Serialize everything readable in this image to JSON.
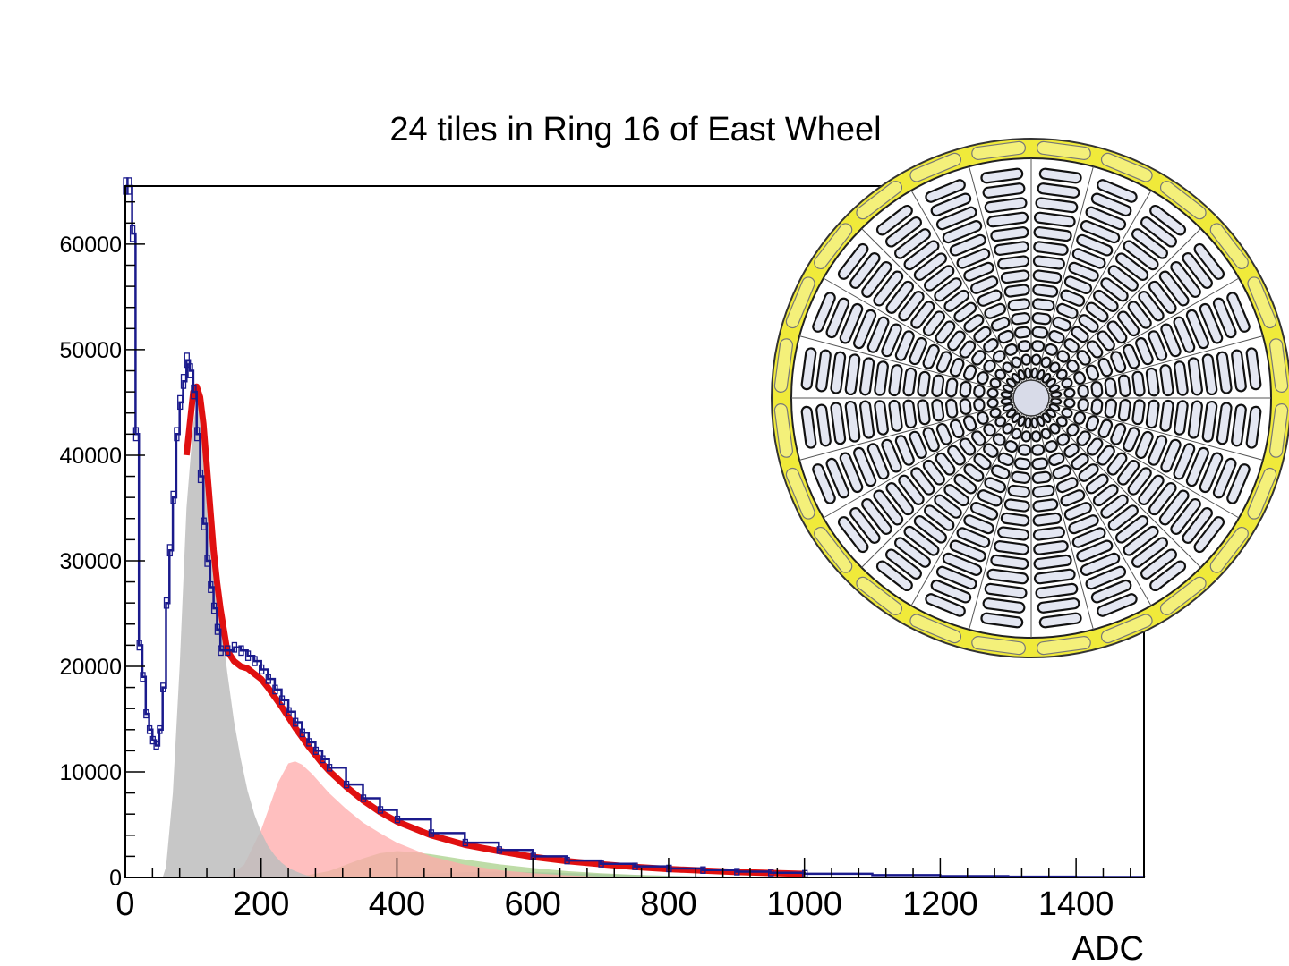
{
  "chart_data": {
    "type": "histogram",
    "title": "24 tiles in Ring 16 of East Wheel",
    "xlabel": "ADC",
    "ylabel": "",
    "xlim": [
      0,
      1500
    ],
    "ylim": [
      0,
      65500
    ],
    "x_ticks": [
      "0",
      "200",
      "400",
      "600",
      "800",
      "1000",
      "1200",
      "1400"
    ],
    "y_ticks": [
      "0",
      "10000",
      "20000",
      "30000",
      "40000",
      "50000",
      "60000"
    ],
    "grid": false,
    "colors": {
      "data": "#1a1a8c",
      "fit": "#e01010",
      "mip1": "#bdbdbd",
      "mip2": "#ffaaaa",
      "mip3": "#a8d08a",
      "mip4": "#9ab0d0",
      "inset_ring": "#f0ea3a"
    },
    "series": [
      {
        "role": "data",
        "x": [
          0,
          5,
          10,
          15,
          20,
          25,
          30,
          35,
          40,
          45,
          50,
          55,
          60,
          65,
          70,
          75,
          80,
          85,
          90,
          95,
          100,
          105,
          110,
          115,
          120,
          125,
          130,
          135,
          140,
          150,
          160,
          170,
          180,
          190,
          200,
          210,
          220,
          230,
          240,
          250,
          260,
          270,
          280,
          290,
          300,
          325,
          350,
          375,
          400,
          450,
          500,
          550,
          600,
          650,
          700,
          750,
          800,
          850,
          900,
          950,
          1000,
          1100,
          1200,
          1300,
          1400,
          1500
        ],
        "y": [
          65500,
          65500,
          61000,
          42000,
          22000,
          19000,
          15500,
          14000,
          13000,
          12500,
          14000,
          18000,
          26000,
          31000,
          36000,
          42000,
          45000,
          47000,
          49000,
          48000,
          46000,
          42000,
          38000,
          33500,
          30000,
          27500,
          25500,
          23500,
          21500,
          21500,
          21800,
          21500,
          21000,
          20500,
          19700,
          18800,
          17800,
          16800,
          15700,
          14700,
          13700,
          12800,
          12000,
          11200,
          10400,
          8800,
          7500,
          6400,
          5500,
          4200,
          3300,
          2600,
          2000,
          1600,
          1300,
          1050,
          850,
          700,
          550,
          450,
          350,
          220,
          130,
          80,
          40,
          20
        ]
      },
      {
        "role": "fit",
        "x": [
          90,
          100,
          105,
          110,
          115,
          120,
          125,
          130,
          135,
          140,
          150,
          160,
          170,
          180,
          190,
          200,
          210,
          220,
          230,
          240,
          250,
          260,
          270,
          280,
          290,
          300,
          325,
          350,
          375,
          400,
          450,
          500,
          550,
          600,
          650,
          700,
          750,
          800,
          850,
          900,
          950,
          1000
        ],
        "y": [
          40000,
          46000,
          46500,
          45500,
          43000,
          39000,
          35000,
          31000,
          28000,
          25500,
          21500,
          20500,
          20000,
          19800,
          19300,
          18800,
          18000,
          17100,
          16200,
          15200,
          14200,
          13300,
          12400,
          11600,
          10800,
          10100,
          8600,
          7300,
          6200,
          5300,
          4000,
          3100,
          2500,
          1950,
          1550,
          1250,
          1000,
          800,
          650,
          520,
          420,
          340
        ]
      },
      {
        "role": "component",
        "x": [
          55,
          60,
          70,
          80,
          90,
          100,
          105,
          110,
          115,
          120,
          130,
          140,
          150,
          160,
          170,
          180,
          190,
          200,
          210,
          220,
          230,
          240,
          250,
          260,
          270,
          280
        ],
        "y": [
          0,
          1000,
          8000,
          20000,
          35000,
          43000,
          45000,
          44500,
          42000,
          38000,
          31000,
          25000,
          19500,
          14800,
          11200,
          8200,
          6000,
          4300,
          3000,
          2100,
          1400,
          900,
          600,
          350,
          150,
          0
        ]
      },
      {
        "role": "component",
        "x": [
          150,
          175,
          200,
          225,
          240,
          250,
          260,
          275,
          300,
          325,
          350,
          375,
          400,
          450,
          500,
          550,
          600,
          650,
          700,
          750
        ],
        "y": [
          0,
          1200,
          4500,
          9000,
          10800,
          11000,
          10700,
          9800,
          8000,
          6500,
          5200,
          4200,
          3300,
          2000,
          1200,
          700,
          400,
          200,
          80,
          0
        ]
      },
      {
        "role": "component",
        "x": [
          250,
          300,
          350,
          375,
          400,
          425,
          450,
          500,
          550,
          600,
          650,
          700,
          750,
          800,
          850,
          900
        ],
        "y": [
          0,
          600,
          1800,
          2300,
          2500,
          2400,
          2200,
          1700,
          1250,
          900,
          600,
          400,
          250,
          150,
          80,
          0
        ]
      },
      {
        "role": "component",
        "x": [
          350,
          400,
          450,
          500,
          550,
          600,
          650,
          700,
          750,
          800,
          850,
          900,
          950,
          1000
        ],
        "y": [
          0,
          150,
          350,
          500,
          550,
          500,
          420,
          320,
          240,
          170,
          110,
          70,
          30,
          0
        ]
      }
    ]
  },
  "inset": {
    "icon": "detector-wheel-icon",
    "description_tiles": 31,
    "sectors": 24
  }
}
